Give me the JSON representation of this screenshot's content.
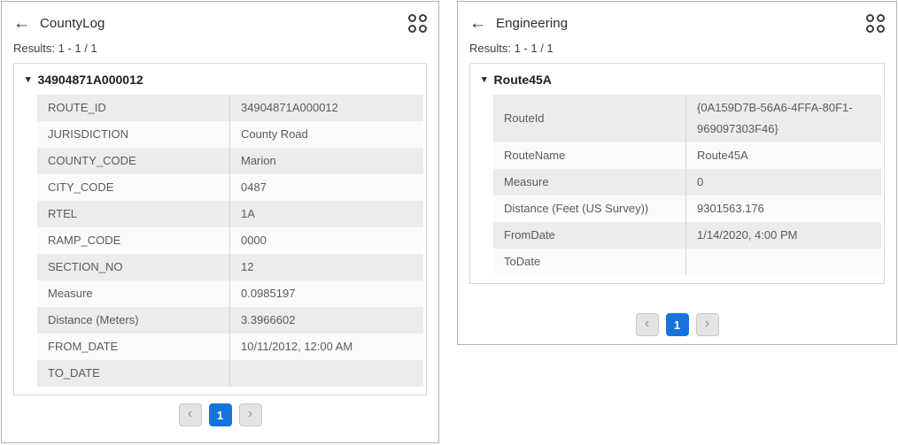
{
  "colors": {
    "accent_blue": "#1673dc",
    "row_alt_bg": "#ececec",
    "row_bg": "#fbfbfb",
    "panel_border": "#b4b4b4"
  },
  "icons": {
    "back_arrow": "←",
    "collapse_triangle": "▾",
    "chevron_left": "‹",
    "chevron_right": "›"
  },
  "panels": [
    {
      "title": "CountyLog",
      "results": "Results: 1 - 1 / 1",
      "feature": {
        "header": "34904871A000012",
        "rows": [
          {
            "label": "ROUTE_ID",
            "value": "34904871A000012"
          },
          {
            "label": "JURISDICTION",
            "value": "County Road"
          },
          {
            "label": "COUNTY_CODE",
            "value": "Marion"
          },
          {
            "label": "CITY_CODE",
            "value": "0487"
          },
          {
            "label": "RTEL",
            "value": "1A"
          },
          {
            "label": "RAMP_CODE",
            "value": "0000"
          },
          {
            "label": "SECTION_NO",
            "value": "12"
          },
          {
            "label": "Measure",
            "value": "0.0985197"
          },
          {
            "label": "Distance (Meters)",
            "value": "3.3966602"
          },
          {
            "label": "FROM_DATE",
            "value": "10/11/2012, 12:00 AM"
          },
          {
            "label": "TO_DATE",
            "value": ""
          }
        ]
      },
      "pagination": {
        "current_page": "1"
      }
    },
    {
      "title": "Engineering",
      "results": "Results: 1 - 1 / 1",
      "feature": {
        "header": "Route45A",
        "rows": [
          {
            "label": "RouteId",
            "value": "{0A159D7B-56A6-4FFA-80F1-969097303F46}"
          },
          {
            "label": "RouteName",
            "value": "Route45A"
          },
          {
            "label": "Measure",
            "value": "0"
          },
          {
            "label": "Distance (Feet (US Survey))",
            "value": "9301563.176"
          },
          {
            "label": "FromDate",
            "value": "1/14/2020, 4:00 PM"
          },
          {
            "label": "ToDate",
            "value": ""
          }
        ]
      },
      "pagination": {
        "current_page": "1"
      }
    }
  ]
}
